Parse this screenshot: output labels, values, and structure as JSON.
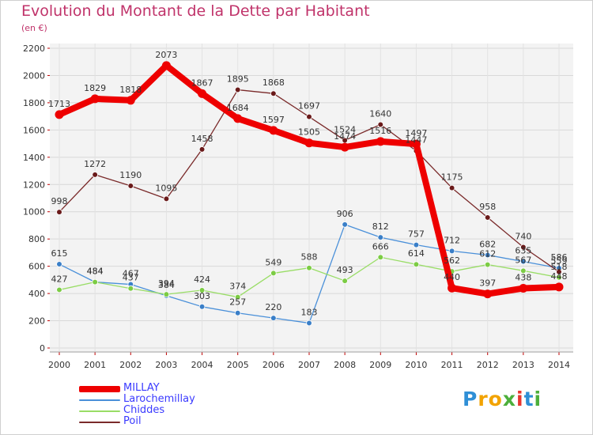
{
  "header": {
    "title": "Evolution du Montant de la Dette par Habitant",
    "subtitle": "(en €)"
  },
  "logo": {
    "letters": [
      {
        "ch": "P",
        "color": "#2f8fd6"
      },
      {
        "ch": "r",
        "color": "#f2a300"
      },
      {
        "ch": "o",
        "color": "#f2a300"
      },
      {
        "ch": "x",
        "color": "#4caf3b"
      },
      {
        "ch": "i",
        "color": "#e8352f"
      },
      {
        "ch": "t",
        "color": "#2f8fd6"
      },
      {
        "ch": "i",
        "color": "#4caf3b"
      }
    ]
  },
  "chart_data": {
    "type": "line",
    "title": "Evolution du Montant de la Dette par Habitant",
    "subtitle": "(en €)",
    "x": [
      "2000",
      "2001",
      "2002",
      "2003",
      "2004",
      "2005",
      "2006",
      "2007",
      "2008",
      "2009",
      "2010",
      "2011",
      "2012",
      "2013",
      "2014"
    ],
    "ylim": [
      0,
      2200
    ],
    "yticks": [
      0,
      200,
      400,
      600,
      800,
      1000,
      1200,
      1400,
      1600,
      1800,
      2000,
      2200
    ],
    "grid": true,
    "legend_position": "bottom-left",
    "series": [
      {
        "name": "MILLAY",
        "color": "#ee0000",
        "weight": "bold",
        "values": [
          1713,
          1829,
          1818,
          2073,
          1867,
          1684,
          1597,
          1505,
          1474,
          1516,
          1497,
          440,
          397,
          438,
          448
        ],
        "labels": [
          "1713",
          "1829",
          "1818",
          "2073",
          "1867",
          "1684",
          "1597",
          "1505",
          "1474",
          "1516",
          "1497",
          "440",
          "397",
          "438",
          "448"
        ]
      },
      {
        "name": "Larochemillay",
        "color": "#4a90d9",
        "marker": "#3a7fc8",
        "values": [
          615,
          484,
          467,
          384,
          303,
          257,
          220,
          183,
          906,
          812,
          757,
          712,
          682,
          635,
          586
        ],
        "labels": [
          "615",
          "484",
          "467",
          "384",
          "303",
          "257",
          "220",
          "183",
          "906",
          "812",
          "757",
          "712",
          "682",
          "635",
          "586"
        ]
      },
      {
        "name": "Chiddes",
        "color": "#99dd66",
        "marker": "#7ccc44",
        "values": [
          427,
          484,
          437,
          394,
          424,
          374,
          549,
          588,
          493,
          666,
          614,
          562,
          612,
          567,
          518
        ],
        "labels": [
          "427",
          "484",
          "437",
          "394",
          "424",
          "374",
          "549",
          "588",
          "493",
          "666",
          "614",
          "562",
          "612",
          "567",
          "518"
        ]
      },
      {
        "name": "Poil",
        "color": "#7a2a2a",
        "marker": "#6a1a1a",
        "values": [
          998,
          1272,
          1190,
          1095,
          1458,
          1895,
          1868,
          1697,
          1524,
          1640,
          1447,
          1175,
          958,
          740,
          559
        ],
        "labels": [
          "998",
          "1272",
          "1190",
          "1095",
          "1458",
          "1895",
          "1868",
          "1697",
          "1524",
          "1640",
          "1447",
          "1175",
          "958",
          "740",
          "559"
        ]
      }
    ]
  }
}
